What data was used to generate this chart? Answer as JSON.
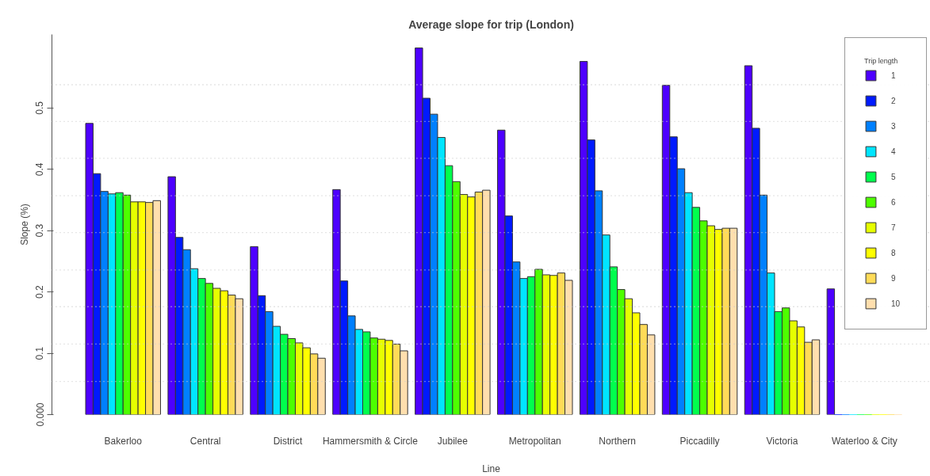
{
  "chart_data": {
    "type": "bar",
    "title": "Average slope for trip (London)",
    "xlabel": "Line",
    "ylabel": "Slope (%)",
    "legend_title": "Trip length",
    "categories": [
      "Bakerloo",
      "Central",
      "District",
      "Hammersmith & Circle",
      "Jubilee",
      "Metropolitan",
      "Northern",
      "Piccadilly",
      "Victoria",
      "Waterloo & City"
    ],
    "series": [
      {
        "name": "1",
        "color": "#4d00ff",
        "values": [
          0.475,
          0.388,
          0.274,
          0.367,
          0.598,
          0.464,
          0.576,
          0.537,
          0.569,
          0.205
        ]
      },
      {
        "name": "2",
        "color": "#001aff",
        "values": [
          0.393,
          0.289,
          0.194,
          0.218,
          0.516,
          0.324,
          0.448,
          0.453,
          0.467,
          0
        ]
      },
      {
        "name": "3",
        "color": "#0080ff",
        "values": [
          0.364,
          0.269,
          0.168,
          0.161,
          0.49,
          0.249,
          0.365,
          0.401,
          0.358,
          0
        ]
      },
      {
        "name": "4",
        "color": "#00e5ff",
        "values": [
          0.36,
          0.238,
          0.144,
          0.139,
          0.452,
          0.222,
          0.293,
          0.362,
          0.231,
          0
        ]
      },
      {
        "name": "5",
        "color": "#00ff4d",
        "values": [
          0.362,
          0.222,
          0.131,
          0.135,
          0.406,
          0.225,
          0.241,
          0.338,
          0.168,
          0
        ]
      },
      {
        "name": "6",
        "color": "#4dff00",
        "values": [
          0.358,
          0.214,
          0.124,
          0.125,
          0.38,
          0.237,
          0.204,
          0.316,
          0.174,
          0
        ]
      },
      {
        "name": "7",
        "color": "#e6ff00",
        "values": [
          0.347,
          0.206,
          0.117,
          0.123,
          0.359,
          0.228,
          0.189,
          0.308,
          0.153,
          0
        ]
      },
      {
        "name": "8",
        "color": "#ffff00",
        "values": [
          0.347,
          0.202,
          0.109,
          0.121,
          0.355,
          0.227,
          0.166,
          0.302,
          0.143,
          0
        ]
      },
      {
        "name": "9",
        "color": "#ffdb58",
        "values": [
          0.346,
          0.195,
          0.099,
          0.115,
          0.363,
          0.231,
          0.147,
          0.304,
          0.118,
          0
        ]
      },
      {
        "name": "10",
        "color": "#ffdfae",
        "values": [
          0.349,
          0.189,
          0.092,
          0.104,
          0.366,
          0.219,
          0.13,
          0.304,
          0.122,
          0
        ]
      }
    ],
    "ylim": [
      0,
      0.62
    ],
    "yticks": [
      {
        "value": 0,
        "label": "0.000"
      },
      0.1,
      0.2,
      0.3,
      0.4,
      0.5
    ],
    "ref_lines": [
      {
        "axis": "y",
        "value": 0.054,
        "color": "#cccccc",
        "line_style": "dotted"
      },
      {
        "axis": "y",
        "value": 0.115,
        "color": "#cccccc",
        "line_style": "dotted"
      },
      {
        "axis": "y",
        "value": 0.176,
        "color": "#cccccc",
        "line_style": "dotted"
      },
      {
        "axis": "y",
        "value": 0.236,
        "color": "#cccccc",
        "line_style": "dotted"
      },
      {
        "axis": "y",
        "value": 0.297,
        "color": "#cccccc",
        "line_style": "dotted"
      },
      {
        "axis": "y",
        "value": 0.357,
        "color": "#cccccc",
        "line_style": "dotted"
      },
      {
        "axis": "y",
        "value": 0.418,
        "color": "#cccccc",
        "line_style": "dotted"
      },
      {
        "axis": "y",
        "value": 0.478,
        "color": "#cccccc",
        "line_style": "dotted"
      },
      {
        "axis": "y",
        "value": 0.538,
        "color": "#cccccc",
        "line_style": "dotted"
      }
    ],
    "grid": false,
    "legend": "top right"
  }
}
